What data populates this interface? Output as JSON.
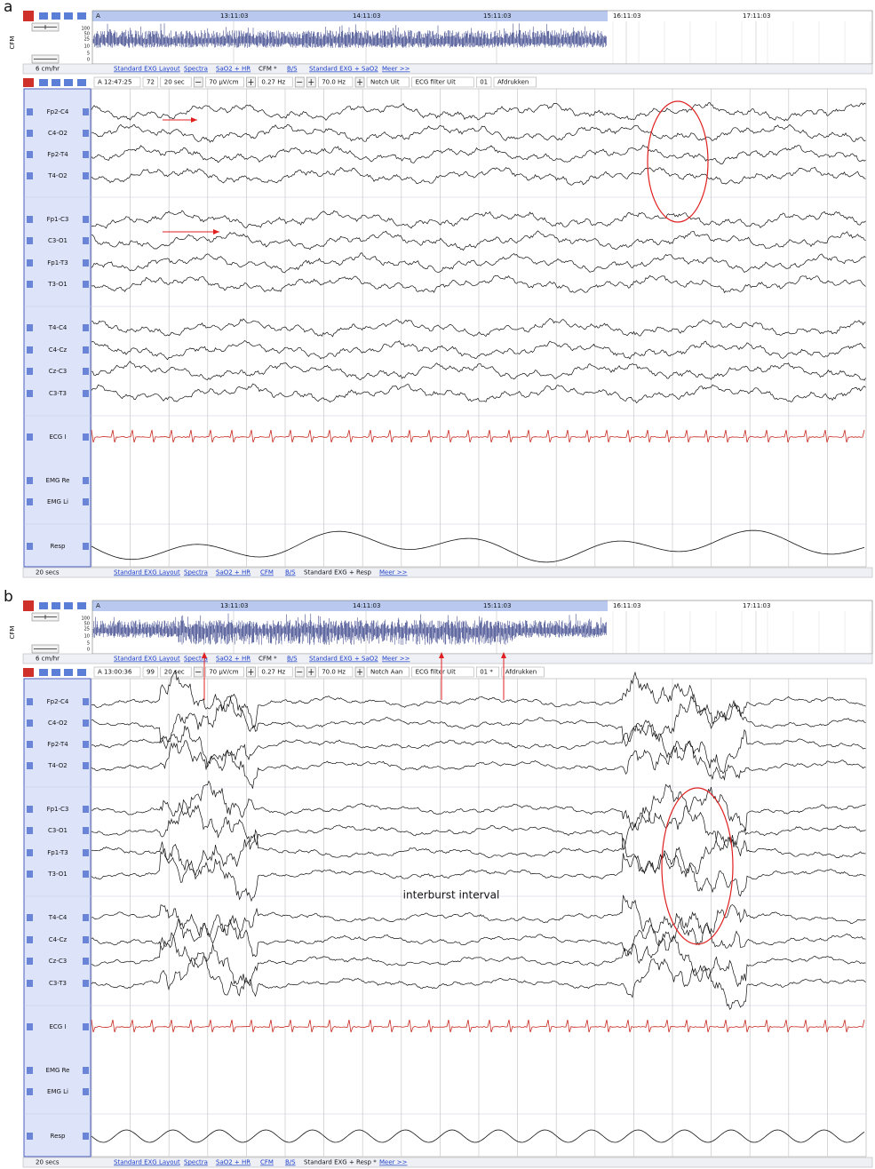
{
  "panels": [
    {
      "label": "a",
      "cfm": {
        "axis_label": "CFM",
        "yticks": [
          "100",
          "50",
          "25",
          "10",
          "5",
          "0"
        ],
        "time_labels": [
          "A",
          "13:11:03",
          "14:11:03",
          "15:11:03",
          "16:11:03",
          "17:11:03"
        ]
      },
      "speed": "6 cm/hr",
      "top_tabs": [
        "Standard EXG Layout",
        "Spectra",
        "SaO2 + HR",
        "CFM *",
        "B/S",
        "Standard EXG + SaO2",
        "Meer >>"
      ],
      "toolbar": [
        "A 12:47:25",
        "72",
        "20 sec",
        "70 µV/cm",
        "0.27 Hz",
        "70.0 Hz",
        "Notch Uit",
        "ECG filter Uit",
        "01",
        "Afdrukken"
      ],
      "channels": [
        "Fp2-C4",
        "C4-O2",
        "Fp2-T4",
        "T4-O2",
        "Fp1-C3",
        "C3-O1",
        "Fp1-T3",
        "T3-O1",
        "T4-C4",
        "C4-Cz",
        "Cz-C3",
        "C3-T3",
        "ECG I",
        "EMG Re",
        "EMG Li",
        "Resp"
      ],
      "bottom_speed": "20 secs",
      "bottom_tabs": [
        "Standard EXG Layout",
        "Spectra",
        "SaO2 + HR",
        "CFM",
        "B/S",
        "Standard EXG + Resp",
        "Meer >>"
      ]
    },
    {
      "label": "b",
      "cfm": {
        "axis_label": "CFM",
        "yticks": [
          "100",
          "50",
          "25",
          "10",
          "5",
          "0"
        ],
        "time_labels": [
          "A",
          "13:11:03",
          "14:11:03",
          "15:11:03",
          "16:11:03",
          "17:11:03"
        ]
      },
      "speed": "6 cm/hr",
      "top_tabs": [
        "Standard EXG Layout",
        "Spectra",
        "SaO2 + HR",
        "CFM *",
        "B/S",
        "Standard EXG + SaO2",
        "Meer >>"
      ],
      "toolbar": [
        "A 13:00:36",
        "99",
        "20 sec",
        "70 µV/cm",
        "0.27 Hz",
        "70.0 Hz",
        "Notch Aan",
        "ECG filter Uit",
        "01 *",
        "Afdrukken"
      ],
      "channels": [
        "Fp2-C4",
        "C4-O2",
        "Fp2-T4",
        "T4-O2",
        "Fp1-C3",
        "C3-O1",
        "Fp1-T3",
        "T3-O1",
        "T4-C4",
        "C4-Cz",
        "Cz-C3",
        "C3-T3",
        "ECG I",
        "EMG Re",
        "EMG Li",
        "Resp"
      ],
      "bottom_speed": "20 secs",
      "bottom_tabs": [
        "Standard EXG Layout",
        "Spectra",
        "SaO2 + HR",
        "CFM",
        "B/S",
        "Standard EXG + Resp *",
        "Meer >>"
      ],
      "annotation": "interburst interval"
    }
  ]
}
